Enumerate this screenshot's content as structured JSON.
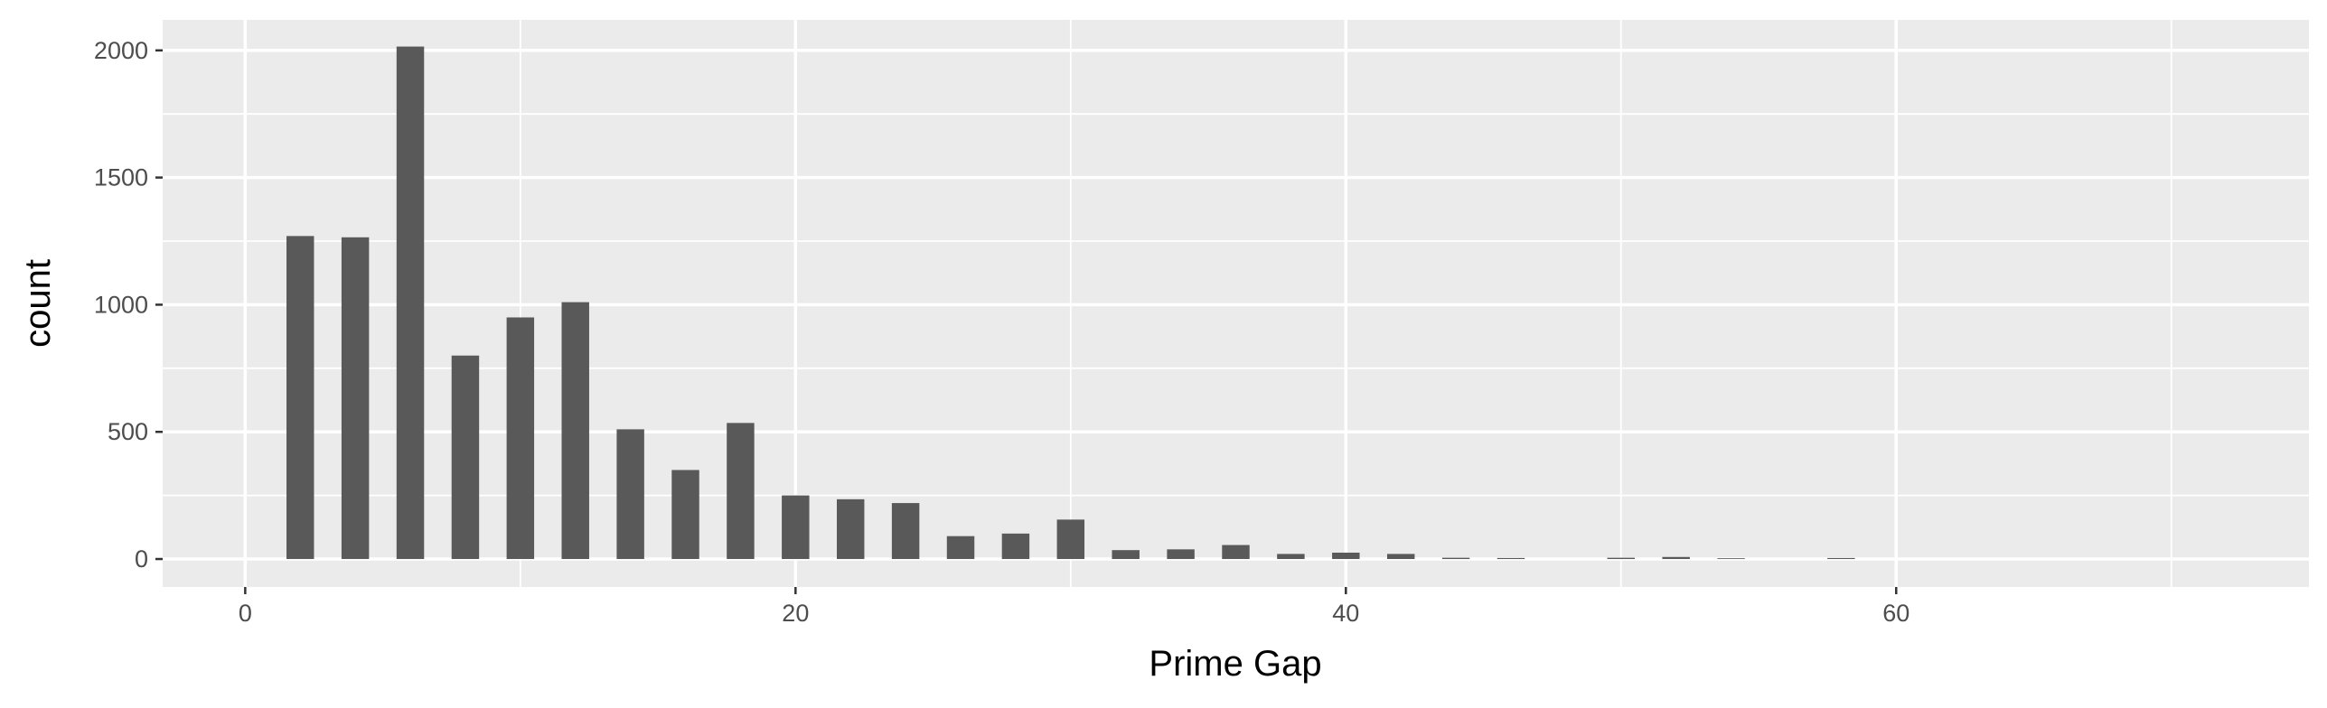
{
  "chart_data": {
    "type": "bar",
    "xlabel": "Prime Gap",
    "ylabel": "count",
    "xlim": [
      -3,
      75
    ],
    "ylim": [
      -110,
      2120
    ],
    "x_ticks": [
      0,
      20,
      40,
      60
    ],
    "y_ticks": [
      0,
      500,
      1000,
      1500,
      2000
    ],
    "bar_width": 1,
    "grid": true,
    "colors": {
      "panel": "#ebebeb",
      "grid": "#ffffff",
      "bar": "#595959",
      "text": "#4d4d4d",
      "title": "#000000"
    },
    "bars": [
      {
        "x": 2,
        "y": 1270
      },
      {
        "x": 4,
        "y": 1265
      },
      {
        "x": 6,
        "y": 2015
      },
      {
        "x": 8,
        "y": 800
      },
      {
        "x": 10,
        "y": 950
      },
      {
        "x": 12,
        "y": 1010
      },
      {
        "x": 14,
        "y": 510
      },
      {
        "x": 16,
        "y": 350
      },
      {
        "x": 18,
        "y": 535
      },
      {
        "x": 20,
        "y": 250
      },
      {
        "x": 22,
        "y": 235
      },
      {
        "x": 24,
        "y": 220
      },
      {
        "x": 26,
        "y": 90
      },
      {
        "x": 28,
        "y": 100
      },
      {
        "x": 30,
        "y": 155
      },
      {
        "x": 32,
        "y": 35
      },
      {
        "x": 34,
        "y": 38
      },
      {
        "x": 36,
        "y": 55
      },
      {
        "x": 38,
        "y": 20
      },
      {
        "x": 40,
        "y": 25
      },
      {
        "x": 42,
        "y": 20
      },
      {
        "x": 44,
        "y": 5
      },
      {
        "x": 46,
        "y": 4
      },
      {
        "x": 50,
        "y": 5
      },
      {
        "x": 52,
        "y": 8
      },
      {
        "x": 54,
        "y": 3
      },
      {
        "x": 58,
        "y": 4
      }
    ]
  }
}
